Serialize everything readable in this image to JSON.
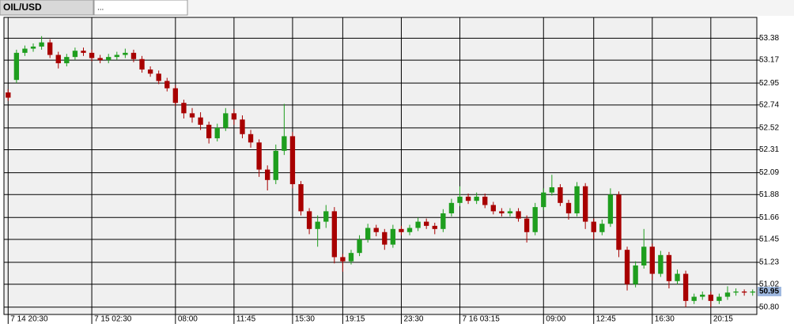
{
  "tabs": [
    "OIL/USD",
    "..."
  ],
  "chart_data": {
    "type": "candlestick",
    "categories": [
      "7 14 20:30",
      null,
      null,
      null,
      null,
      null,
      null,
      null,
      null,
      null,
      "7 15 02:30",
      null,
      null,
      null,
      null,
      null,
      null,
      null,
      null,
      null,
      "08:00",
      null,
      null,
      null,
      null,
      null,
      null,
      "11:45",
      null,
      null,
      null,
      null,
      null,
      null,
      "15:30",
      null,
      null,
      null,
      null,
      null,
      "19:15",
      null,
      null,
      null,
      null,
      null,
      null,
      "23:30",
      null,
      null,
      null,
      null,
      null,
      null,
      "7 16 03:15",
      null,
      null,
      null,
      null,
      null,
      null,
      null,
      null,
      null,
      "09:00",
      null,
      null,
      null,
      null,
      null,
      "12:45",
      null,
      null,
      null,
      null,
      null,
      null,
      "16:30",
      null,
      null,
      null,
      null,
      null,
      null,
      "20:15",
      null,
      null,
      null,
      null,
      null
    ],
    "open": [
      52.86,
      52.98,
      53.24,
      53.28,
      53.3,
      53.34,
      53.22,
      53.14,
      53.2,
      53.26,
      53.24,
      53.19,
      53.17,
      53.2,
      53.22,
      53.24,
      53.18,
      53.08,
      53.04,
      52.97,
      52.9,
      52.76,
      52.66,
      52.62,
      52.55,
      52.42,
      52.52,
      52.66,
      52.6,
      52.46,
      52.38,
      52.12,
      52.02,
      52.3,
      52.44,
      51.98,
      51.72,
      51.55,
      51.62,
      51.72,
      51.28,
      51.24,
      51.32,
      51.45,
      51.56,
      51.52,
      51.4,
      51.55,
      51.52,
      51.56,
      51.62,
      51.58,
      51.55,
      51.7,
      51.8,
      51.86,
      51.82,
      51.86,
      51.78,
      51.72,
      51.7,
      51.72,
      51.65,
      51.52,
      51.76,
      51.9,
      51.95,
      51.8,
      51.7,
      51.96,
      51.62,
      51.52,
      51.6,
      51.88,
      51.35,
      51.02,
      51.2,
      51.38,
      51.12,
      51.3,
      51.05,
      51.12,
      50.86,
      50.9,
      50.92,
      50.86,
      50.9,
      50.94,
      50.95,
      50.94
    ],
    "high": [
      52.89,
      53.27,
      53.31,
      53.33,
      53.4,
      53.37,
      53.25,
      53.23,
      53.29,
      53.29,
      53.27,
      53.22,
      53.23,
      53.25,
      53.28,
      53.27,
      53.21,
      53.11,
      53.07,
      53.0,
      52.93,
      52.79,
      52.71,
      52.67,
      52.58,
      52.56,
      52.71,
      52.7,
      52.64,
      52.5,
      52.41,
      52.16,
      52.36,
      52.75,
      52.48,
      52.01,
      51.75,
      51.68,
      51.78,
      51.76,
      51.31,
      51.35,
      51.49,
      51.6,
      51.59,
      51.55,
      51.59,
      51.58,
      51.59,
      51.66,
      51.65,
      51.61,
      51.74,
      51.84,
      51.96,
      51.89,
      51.9,
      51.89,
      51.81,
      51.75,
      51.75,
      51.75,
      51.68,
      51.8,
      51.94,
      52.07,
      51.98,
      51.83,
      52.0,
      51.99,
      51.65,
      51.64,
      51.94,
      51.91,
      51.38,
      51.24,
      51.55,
      51.41,
      51.34,
      51.33,
      51.16,
      51.15,
      50.93,
      50.95,
      50.95,
      50.93,
      51.0,
      50.98,
      50.97,
      50.97
    ],
    "low": [
      52.78,
      52.95,
      53.21,
      53.25,
      53.27,
      53.19,
      53.09,
      53.11,
      53.17,
      53.21,
      53.16,
      53.14,
      53.14,
      53.17,
      53.19,
      53.15,
      53.05,
      53.01,
      52.94,
      52.87,
      52.73,
      52.61,
      52.57,
      52.5,
      52.37,
      52.39,
      52.49,
      52.55,
      52.42,
      52.33,
      52.05,
      51.92,
      51.98,
      52.26,
      51.94,
      51.68,
      51.5,
      51.38,
      51.56,
      51.22,
      51.14,
      51.21,
      51.29,
      51.42,
      51.48,
      51.35,
      51.37,
      51.49,
      51.49,
      51.53,
      51.55,
      51.5,
      51.52,
      51.67,
      51.77,
      51.79,
      51.79,
      51.75,
      51.69,
      51.67,
      51.67,
      51.62,
      51.42,
      51.49,
      51.73,
      51.87,
      51.77,
      51.64,
      51.67,
      51.55,
      51.45,
      51.49,
      51.57,
      51.28,
      50.96,
      50.99,
      51.17,
      51.06,
      51.09,
      50.98,
      51.02,
      50.8,
      50.83,
      50.87,
      50.8,
      50.83,
      50.87,
      50.91,
      50.91,
      50.91
    ],
    "close": [
      52.81,
      53.24,
      53.28,
      53.3,
      53.34,
      53.22,
      53.14,
      53.2,
      53.26,
      53.24,
      53.19,
      53.17,
      53.2,
      53.22,
      53.24,
      53.18,
      53.08,
      53.04,
      52.97,
      52.9,
      52.76,
      52.66,
      52.62,
      52.55,
      52.42,
      52.52,
      52.66,
      52.6,
      52.46,
      52.38,
      52.12,
      52.02,
      52.3,
      52.44,
      51.98,
      51.72,
      51.55,
      51.62,
      51.72,
      51.28,
      51.24,
      51.32,
      51.45,
      51.56,
      51.52,
      51.4,
      51.55,
      51.52,
      51.56,
      51.62,
      51.58,
      51.55,
      51.7,
      51.8,
      51.86,
      51.82,
      51.86,
      51.78,
      51.72,
      51.7,
      51.72,
      51.65,
      51.52,
      51.76,
      51.9,
      51.95,
      51.8,
      51.7,
      51.96,
      51.62,
      51.52,
      51.6,
      51.88,
      51.35,
      51.02,
      51.2,
      51.38,
      51.12,
      51.3,
      51.05,
      51.12,
      50.86,
      50.9,
      50.92,
      50.86,
      50.9,
      50.94,
      50.95,
      50.94,
      50.95
    ],
    "up_color": "#1e9e1e",
    "down_color": "#a80000",
    "ylim": [
      50.73,
      53.58
    ],
    "yticks": [
      {
        "value": 50.8,
        "label": "50.80"
      },
      51.02,
      51.23,
      51.45,
      51.66,
      51.88,
      52.09,
      52.31,
      52.52,
      52.74,
      52.95,
      53.17,
      53.38
    ],
    "last_price": 50.95,
    "grid": true
  }
}
